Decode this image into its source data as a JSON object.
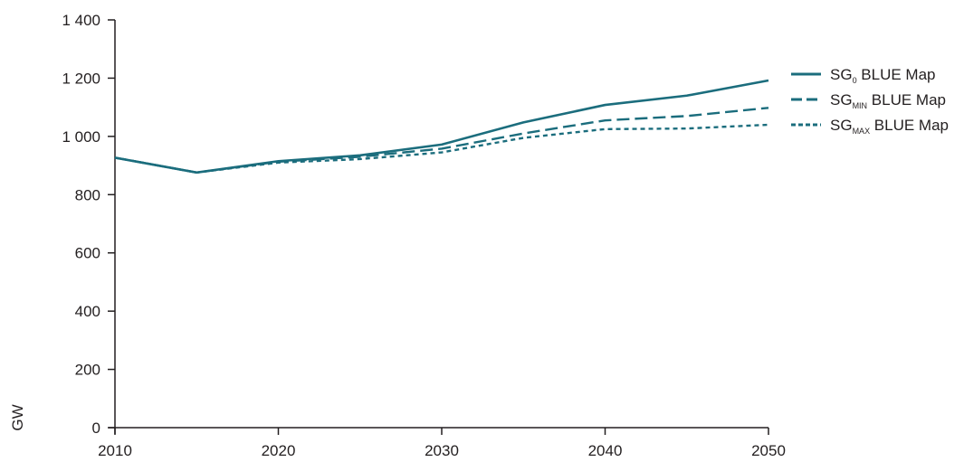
{
  "chart_data": {
    "type": "line",
    "title": "",
    "xlabel": "",
    "ylabel": "GW",
    "xlim": [
      2010,
      2050
    ],
    "ylim": [
      0,
      1400
    ],
    "x_ticks": [
      2010,
      2020,
      2030,
      2040,
      2050
    ],
    "y_ticks": [
      0,
      200,
      400,
      600,
      800,
      1000,
      1200,
      1400
    ],
    "y_tick_labels": [
      "0",
      "200",
      "400",
      "600",
      "800",
      "1 000",
      "1 200",
      "1 400"
    ],
    "grid": false,
    "legend_position": "top-right",
    "series": [
      {
        "name": "SG0 BLUE Map",
        "name_parts": {
          "prefix": "SG",
          "sub": "0",
          "suffix": " BLUE Map"
        },
        "line_style": "solid",
        "color": "#1b6d7d",
        "x": [
          2010,
          2015,
          2020,
          2025,
          2030,
          2035,
          2040,
          2045,
          2050
        ],
        "values": [
          927,
          876,
          915,
          935,
          972,
          1048,
          1108,
          1140,
          1192
        ]
      },
      {
        "name": "SGMIN BLUE Map",
        "name_parts": {
          "prefix": "SG",
          "sub": "MIN",
          "suffix": " BLUE Map"
        },
        "line_style": "dashed",
        "color": "#1b6d7d",
        "x": [
          2010,
          2015,
          2020,
          2025,
          2030,
          2035,
          2040,
          2045,
          2050
        ],
        "values": [
          927,
          876,
          913,
          930,
          958,
          1010,
          1055,
          1070,
          1098
        ]
      },
      {
        "name": "SGMAX BLUE Map",
        "name_parts": {
          "prefix": "SG",
          "sub": "MAX",
          "suffix": " BLUE Map"
        },
        "line_style": "dotted",
        "color": "#1b6d7d",
        "x": [
          2010,
          2015,
          2020,
          2025,
          2030,
          2035,
          2040,
          2045,
          2050
        ],
        "values": [
          927,
          876,
          910,
          922,
          945,
          995,
          1025,
          1027,
          1040
        ]
      }
    ]
  }
}
